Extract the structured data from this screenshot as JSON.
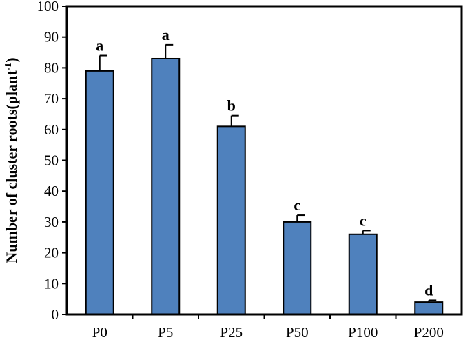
{
  "chart_data": {
    "type": "bar",
    "categories": [
      "P0",
      "P5",
      "P25",
      "P50",
      "P100",
      "P200"
    ],
    "values": [
      79,
      83,
      61,
      30,
      26,
      4
    ],
    "errors": [
      5,
      4.5,
      3.5,
      2.2,
      1.2,
      0.6
    ],
    "significance": [
      "a",
      "a",
      "b",
      "c",
      "c",
      "d"
    ],
    "ylabel": "Number of cluster roots(plant",
    "ylabel_sup": "-1",
    "ylabel_close": ")",
    "ylim": [
      0,
      100
    ],
    "yticks": [
      0,
      10,
      20,
      30,
      40,
      50,
      60,
      70,
      80,
      90,
      100
    ],
    "bar_color": "#4f81bd",
    "grid": false
  }
}
